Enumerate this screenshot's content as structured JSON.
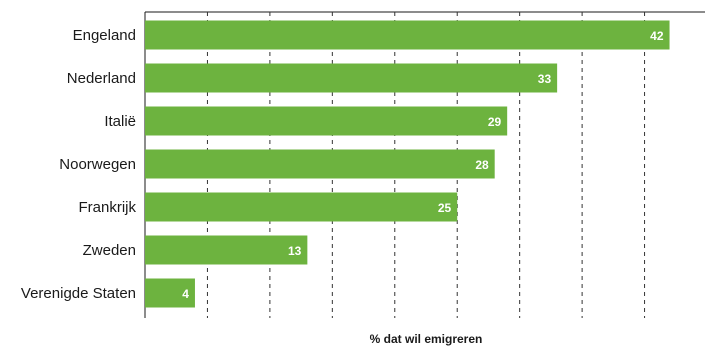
{
  "chart_data": {
    "type": "bar",
    "orientation": "horizontal",
    "categories": [
      "Engeland",
      "Nederland",
      "Italië",
      "Noorwegen",
      "Frankrijk",
      "Zweden",
      "Verenigde Staten"
    ],
    "values": [
      42,
      33,
      29,
      28,
      25,
      13,
      4
    ],
    "xlabel": "% dat wil emigreren",
    "xlim": [
      0,
      45
    ],
    "grid": "vertical dashed",
    "bar_color": "#6db33f"
  }
}
